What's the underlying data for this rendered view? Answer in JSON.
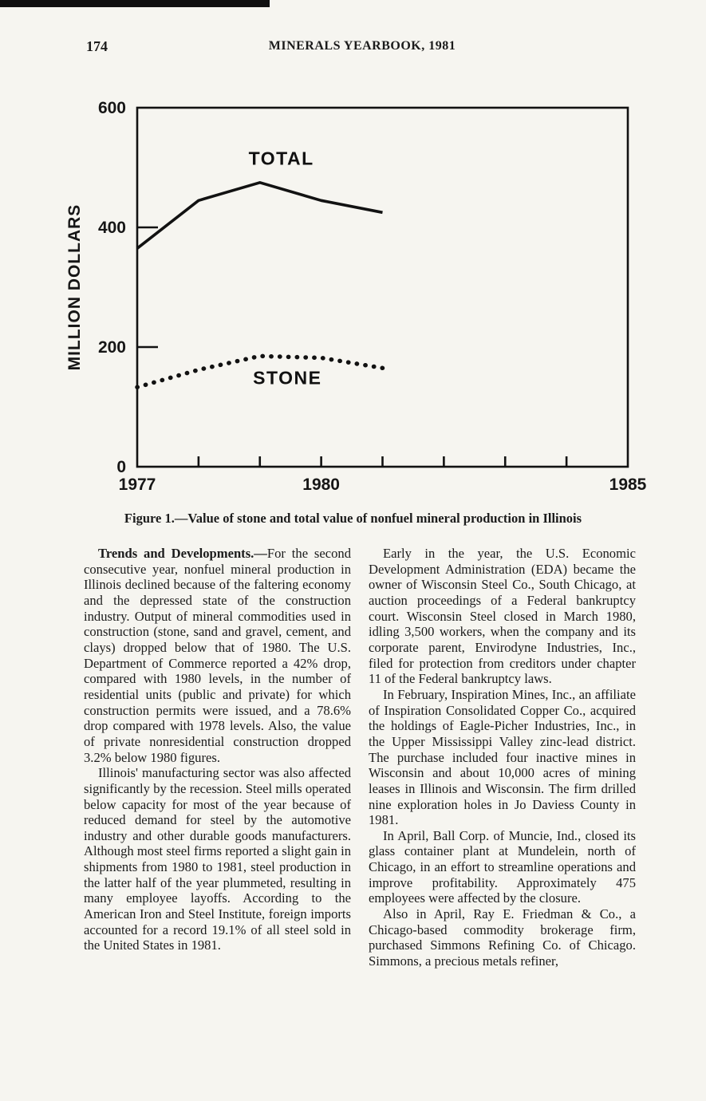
{
  "page": {
    "number": "174",
    "header_title": "MINERALS YEARBOOK, 1981"
  },
  "figure": {
    "caption": "Figure 1.—Value of stone and total value of nonfuel mineral production in Illinois"
  },
  "chart_data": {
    "type": "line",
    "title": "Value of stone and total value of nonfuel mineral production in Illinois",
    "xlabel": "",
    "ylabel": "MILLION DOLLARS",
    "ylim": [
      0,
      600
    ],
    "yticks": [
      0,
      200,
      400,
      600
    ],
    "xlim": [
      1977,
      1985
    ],
    "xticks": [
      1977,
      1978,
      1979,
      1980,
      1981,
      1982,
      1983,
      1984,
      1985
    ],
    "xtick_labels": [
      "1977",
      "1980",
      "1985"
    ],
    "grid": false,
    "legend": "inline-labels",
    "x": [
      1977,
      1978,
      1979,
      1980,
      1981
    ],
    "series": [
      {
        "name": "TOTAL",
        "style": "solid",
        "values": [
          365,
          445,
          475,
          445,
          425
        ],
        "label_at": [
          1979.35,
          505
        ]
      },
      {
        "name": "STONE",
        "style": "dotted",
        "values": [
          133,
          162,
          185,
          182,
          165
        ],
        "label_at": [
          1979.45,
          138
        ]
      }
    ]
  },
  "article": {
    "left": [
      {
        "lead": "Trends and Developments.—",
        "text": "For the second consecutive year, nonfuel mineral production in Illinois declined because of the faltering economy and the depressed state of the construction industry. Output of mineral commodities used in construction (stone, sand and gravel, cement, and clays) dropped below that of 1980. The U.S. Department of Commerce reported a 42% drop, compared with 1980 levels, in the number of residential units (public and private) for which construction permits were issued, and a 78.6% drop compared with 1978 levels. Also, the value of private nonresidential construction dropped 3.2% below 1980 figures."
      },
      {
        "text": "Illinois' manufacturing sector was also affected significantly by the recession. Steel mills operated below capacity for most of the year because of reduced demand for steel by the automotive industry and other durable goods manufacturers. Although most steel firms reported a slight gain in shipments from 1980 to 1981, steel production in the latter half of the year plummeted, resulting in many employee layoffs. According to the American Iron and Steel Institute, foreign imports accounted for a record 19.1% of all steel sold in the United States in 1981."
      }
    ],
    "right": [
      {
        "text": "Early in the year, the U.S. Economic Development Administration (EDA) became the owner of Wisconsin Steel Co., South Chicago, at auction proceedings of a Federal bankruptcy court. Wisconsin Steel closed in March 1980, idling 3,500 workers, when the company and its corporate parent, Envirodyne Industries, Inc., filed for protection from creditors under chapter 11 of the Federal bankruptcy laws."
      },
      {
        "text": "In February, Inspiration Mines, Inc., an affiliate of Inspiration Consolidated Copper Co., acquired the holdings of Eagle-Picher Industries, Inc., in the Upper Mississippi Valley zinc-lead district. The purchase included four inactive mines in Wisconsin and about 10,000 acres of mining leases in Illinois and Wisconsin. The firm drilled nine exploration holes in Jo Daviess County in 1981."
      },
      {
        "text": "In April, Ball Corp. of Muncie, Ind., closed its glass container plant at Mundelein, north of Chicago, in an effort to streamline operations and improve profitability. Approximately 475 employees were affected by the closure."
      },
      {
        "text": "Also in April, Ray E. Friedman & Co., a Chicago-based commodity brokerage firm, purchased Simmons Refining Co. of Chicago. Simmons, a precious metals refiner,"
      }
    ]
  }
}
